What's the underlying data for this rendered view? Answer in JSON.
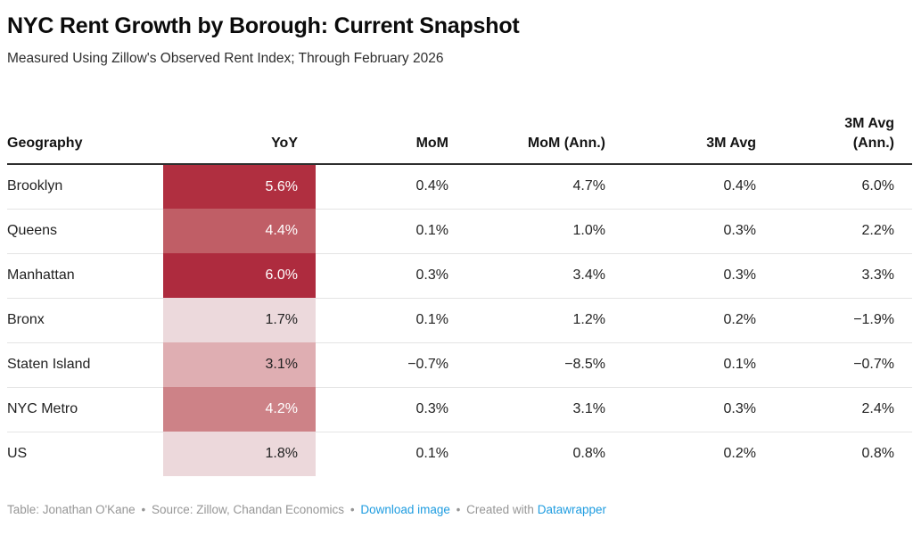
{
  "header": {
    "title": "NYC Rent Growth by Borough: Current Snapshot",
    "subtitle": "Measured Using Zillow's Observed Rent Index; Through February 2026"
  },
  "table": {
    "columns": [
      "Geography",
      "YoY",
      "MoM",
      "MoM (Ann.)",
      "3M Avg",
      "3M Avg (Ann.)"
    ],
    "header_last_lines": [
      "3M Avg",
      "(Ann.)"
    ],
    "rows": [
      {
        "geography": "Brooklyn",
        "yoy": "5.6%",
        "yoy_bg": "#b02f40",
        "yoy_fg": "#ffffff",
        "mom": "0.4%",
        "mom_ann": "4.7%",
        "avg_3m": "0.4%",
        "avg_3m_ann": "6.0%"
      },
      {
        "geography": "Queens",
        "yoy": "4.4%",
        "yoy_bg": "#c05e66",
        "yoy_fg": "#ffffff",
        "mom": "0.1%",
        "mom_ann": "1.0%",
        "avg_3m": "0.3%",
        "avg_3m_ann": "2.2%"
      },
      {
        "geography": "Manhattan",
        "yoy": "6.0%",
        "yoy_bg": "#ae2b3e",
        "yoy_fg": "#ffffff",
        "mom": "0.3%",
        "mom_ann": "3.4%",
        "avg_3m": "0.3%",
        "avg_3m_ann": "3.3%"
      },
      {
        "geography": "Bronx",
        "yoy": "1.7%",
        "yoy_bg": "#ecd9dc",
        "yoy_fg": "#222222",
        "mom": "0.1%",
        "mom_ann": "1.2%",
        "avg_3m": "0.2%",
        "avg_3m_ann": "−1.9%"
      },
      {
        "geography": "Staten Island",
        "yoy": "3.1%",
        "yoy_bg": "#dfaeb2",
        "yoy_fg": "#222222",
        "mom": "−0.7%",
        "mom_ann": "−8.5%",
        "avg_3m": "0.1%",
        "avg_3m_ann": "−0.7%"
      },
      {
        "geography": "NYC Metro",
        "yoy": "4.2%",
        "yoy_bg": "#cd8287",
        "yoy_fg": "#ffffff",
        "mom": "0.3%",
        "mom_ann": "3.1%",
        "avg_3m": "0.3%",
        "avg_3m_ann": "2.4%"
      },
      {
        "geography": "US",
        "yoy": "1.8%",
        "yoy_bg": "#ecd8db",
        "yoy_fg": "#222222",
        "mom": "0.1%",
        "mom_ann": "0.8%",
        "avg_3m": "0.2%",
        "avg_3m_ann": "0.8%"
      }
    ]
  },
  "footer": {
    "attribution": "Table: Jonathan O'Kane",
    "separator": "•",
    "source": "Source: Zillow, Chandan Economics",
    "download_label": "Download image",
    "created_with": "Created with",
    "datawrapper_label": "Datawrapper",
    "link_color": "#1e9ce0",
    "text_color": "#969696"
  },
  "colors": {
    "heat_dark": "#ae2b3e",
    "heat_light": "#ecd9dc",
    "header_border": "#2e2e2e",
    "row_divider": "#e4e4e4"
  },
  "chart_data": {
    "type": "table",
    "title": "NYC Rent Growth by Borough: Current Snapshot",
    "subtitle": "Measured Using Zillow's Observed Rent Index; Through February 2026",
    "columns": [
      "Geography",
      "YoY",
      "MoM",
      "MoM (Ann.)",
      "3M Avg",
      "3M Avg (Ann.)"
    ],
    "rows": [
      [
        "Brooklyn",
        "5.6%",
        "0.4%",
        "4.7%",
        "0.4%",
        "6.0%"
      ],
      [
        "Queens",
        "4.4%",
        "0.1%",
        "1.0%",
        "0.3%",
        "2.2%"
      ],
      [
        "Manhattan",
        "6.0%",
        "0.3%",
        "3.4%",
        "0.3%",
        "3.3%"
      ],
      [
        "Bronx",
        "1.7%",
        "0.1%",
        "1.2%",
        "0.2%",
        "−1.9%"
      ],
      [
        "Staten Island",
        "3.1%",
        "−0.7%",
        "−8.5%",
        "0.1%",
        "−0.7%"
      ],
      [
        "NYC Metro",
        "4.2%",
        "0.3%",
        "3.1%",
        "0.3%",
        "2.4%"
      ],
      [
        "US",
        "1.8%",
        "0.1%",
        "0.8%",
        "0.2%",
        "0.8%"
      ]
    ],
    "heatmap_column": "YoY",
    "heatmap_values": [
      5.6,
      4.4,
      6.0,
      1.7,
      3.1,
      4.2,
      1.8
    ],
    "layout_hints": {
      "heatmap_scale": [
        "#ecd9dc",
        "#ae2b3e"
      ],
      "value_align": "right",
      "grid": "horizontal-dividers"
    }
  }
}
